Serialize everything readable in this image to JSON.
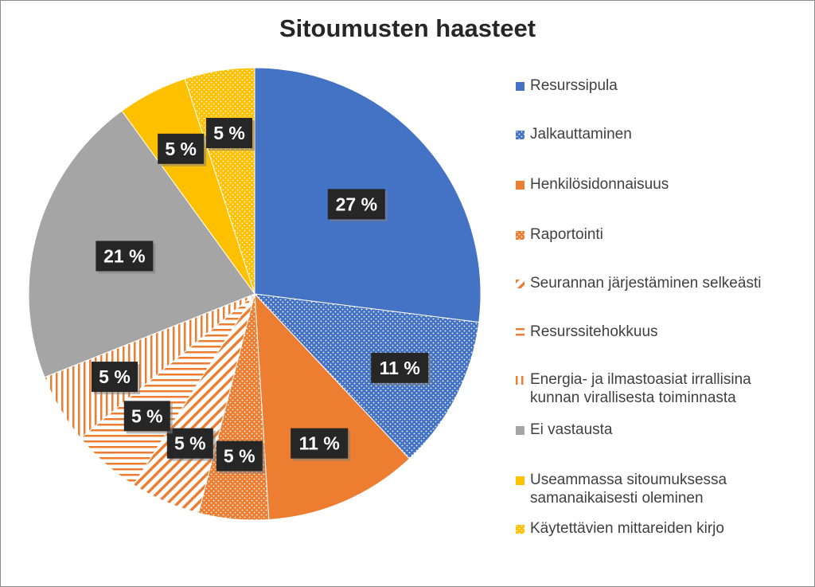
{
  "chart_data": {
    "type": "pie",
    "title": "Sitoumusten haasteet",
    "legend_position": "right",
    "slices": [
      {
        "label": "Resurssipula",
        "value": 27,
        "data_label": "27 %",
        "color": "#4472C4",
        "pattern": "solid"
      },
      {
        "label": "Jalkauttaminen",
        "value": 11,
        "data_label": "11 %",
        "color": "#4472C4",
        "pattern": "dots"
      },
      {
        "label": "Henkilösidonnaisuus",
        "value": 11,
        "data_label": "11 %",
        "color": "#ED7D31",
        "pattern": "solid"
      },
      {
        "label": "Raportointi",
        "value": 5,
        "data_label": "5 %",
        "color": "#ED7D31",
        "pattern": "dots"
      },
      {
        "label": "Seurannan järjestäminen selkeästi",
        "value": 5,
        "data_label": "5 %",
        "color": "#ED7D31",
        "pattern": "diagonal"
      },
      {
        "label": "Resurssitehokkuus",
        "value": 5,
        "data_label": "5 %",
        "color": "#ED7D31",
        "pattern": "horizontal"
      },
      {
        "label": "Energia- ja ilmastoasiat irrallisina kunnan virallisesta toiminnasta",
        "label_lines": [
          "Energia- ja ilmastoasiat irrallisina",
          "kunnan virallisesta toiminnasta"
        ],
        "value": 5,
        "data_label": "5 %",
        "color": "#ED7D31",
        "pattern": "vertical"
      },
      {
        "label": "Ei vastausta",
        "value": 21,
        "data_label": "21 %",
        "color": "#A5A5A5",
        "pattern": "solid"
      },
      {
        "label": "Useammassa sitoumuksessa samanaikaisesti oleminen",
        "label_lines": [
          "Useammassa sitoumuksessa",
          "samanaikaisesti oleminen"
        ],
        "value": 5,
        "data_label": "5 %",
        "color": "#FFC000",
        "pattern": "solid"
      },
      {
        "label": "Käytettävien mittareiden kirjo",
        "value": 5,
        "data_label": "5 %",
        "color": "#FFC000",
        "pattern": "dots"
      }
    ]
  }
}
